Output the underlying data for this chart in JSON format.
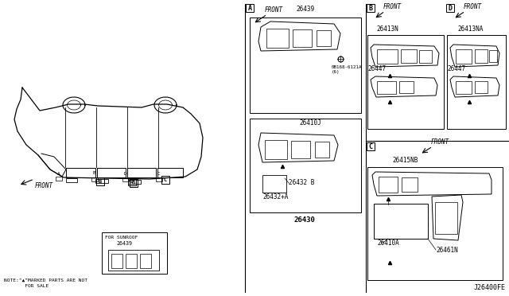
{
  "bg_color": "#ffffff",
  "line_color": "#000000",
  "diagram_id": "J26400FE",
  "note_text": "NOTE:\"▲\"MARKED PARTS ARE NOT\n       FOR SALE",
  "part_labels": {
    "main_assembly": "26430",
    "sunroof_part": "26439",
    "top_part": "26439",
    "screw": "0B168-6121A\n(6)",
    "sub_part1": "26410J",
    "sub_part2": "26432 B",
    "sub_part3": "26432+A",
    "b_front_part1": "26413N",
    "b_front_part2": "26447",
    "d_front_part1": "26413NA",
    "d_front_part2": "26447",
    "c_front_part1": "26415NB",
    "c_front_part2": "26410A",
    "c_front_part3": "26461N"
  }
}
